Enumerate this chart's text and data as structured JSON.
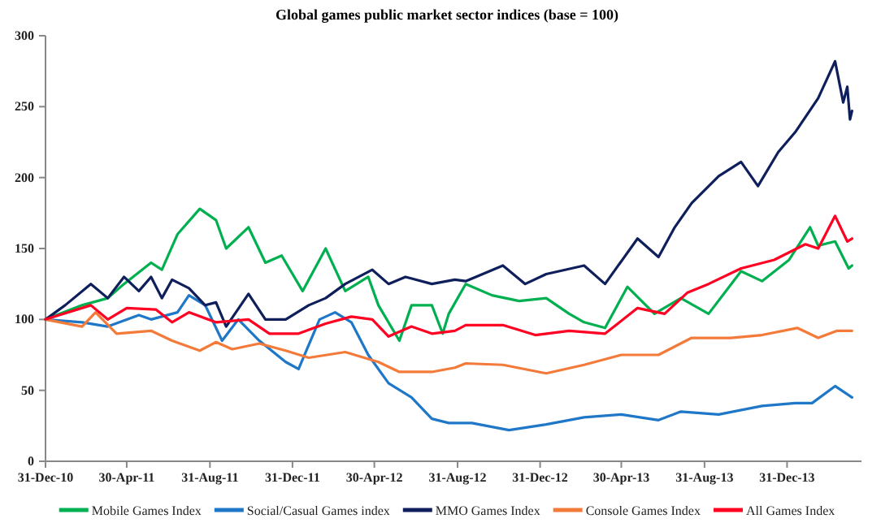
{
  "chart_data": {
    "type": "line",
    "title": "Global games public market sector indices (base = 100)",
    "xlim": [
      "2010-12-31",
      "2014-04-20"
    ],
    "xticks": [
      {
        "value": "2010-12-31",
        "label": "31-Dec-10"
      },
      {
        "value": "2011-04-30",
        "label": "30-Apr-11"
      },
      {
        "value": "2011-08-31",
        "label": "31-Aug-11"
      },
      {
        "value": "2011-12-31",
        "label": "31-Dec-11"
      },
      {
        "value": "2012-04-30",
        "label": "30-Apr-12"
      },
      {
        "value": "2012-08-31",
        "label": "31-Aug-12"
      },
      {
        "value": "2012-12-31",
        "label": "31-Dec-12"
      },
      {
        "value": "2013-04-30",
        "label": "30-Apr-13"
      },
      {
        "value": "2013-08-31",
        "label": "31-Aug-13"
      },
      {
        "value": "2013-12-31",
        "label": "31-Dec-13"
      }
    ],
    "ylim": [
      0,
      300
    ],
    "yticks": [
      0,
      50,
      100,
      150,
      200,
      250,
      300
    ],
    "grid": false,
    "legend": "bottom",
    "series": [
      {
        "name": "Mobile Games Index",
        "color": "#00b050",
        "x": [
          "2010-12-31",
          "2011-02-23",
          "2011-04-02",
          "2011-04-26",
          "2011-06-05",
          "2011-06-21",
          "2011-07-14",
          "2011-08-16",
          "2011-09-09",
          "2011-09-24",
          "2011-10-27",
          "2011-11-21",
          "2011-12-15",
          "2012-01-15",
          "2012-02-18",
          "2012-03-18",
          "2012-04-21",
          "2012-05-06",
          "2012-06-06",
          "2012-06-24",
          "2012-07-24",
          "2012-08-09",
          "2012-08-18",
          "2012-09-12",
          "2012-10-21",
          "2012-11-30",
          "2013-01-09",
          "2013-02-12",
          "2013-03-06",
          "2013-04-06",
          "2013-05-09",
          "2013-06-18",
          "2013-07-27",
          "2013-09-06",
          "2013-10-24",
          "2013-11-24",
          "2014-01-03",
          "2014-02-03",
          "2014-02-15",
          "2014-03-12",
          "2014-04-01",
          "2014-04-06"
        ],
        "values": [
          100,
          110,
          115,
          125,
          140,
          135,
          160,
          178,
          170,
          150,
          165,
          140,
          145,
          120,
          150,
          120,
          130,
          110,
          85,
          110,
          110,
          90,
          104,
          125,
          117,
          113,
          115,
          104,
          98,
          94,
          123,
          104,
          115,
          104,
          134,
          127,
          142,
          165,
          152,
          155,
          136,
          138
        ]
      },
      {
        "name": "Social/Casual Games index",
        "color": "#1f77c8",
        "x": [
          "2010-12-31",
          "2011-02-23",
          "2011-04-02",
          "2011-05-18",
          "2011-06-05",
          "2011-07-14",
          "2011-07-31",
          "2011-08-24",
          "2011-09-18",
          "2011-10-12",
          "2011-11-12",
          "2011-12-21",
          "2012-01-09",
          "2012-02-09",
          "2012-03-03",
          "2012-03-27",
          "2012-04-21",
          "2012-05-21",
          "2012-06-24",
          "2012-07-24",
          "2012-08-18",
          "2012-09-21",
          "2012-11-15",
          "2013-01-09",
          "2013-03-06",
          "2013-04-30",
          "2013-06-24",
          "2013-07-27",
          "2013-09-21",
          "2013-11-24",
          "2014-01-12",
          "2014-02-06",
          "2014-03-12",
          "2014-04-06"
        ],
        "values": [
          100,
          98,
          95,
          103,
          100,
          105,
          117,
          110,
          85,
          100,
          85,
          70,
          65,
          100,
          105,
          98,
          75,
          55,
          45,
          30,
          27,
          27,
          22,
          26,
          31,
          33,
          29,
          35,
          33,
          39,
          41,
          41,
          53,
          45
        ]
      },
      {
        "name": "MMO Games Index",
        "color": "#0f1f5c",
        "x": [
          "2010-12-31",
          "2011-01-29",
          "2011-03-08",
          "2011-04-02",
          "2011-04-26",
          "2011-05-18",
          "2011-06-05",
          "2011-06-21",
          "2011-07-06",
          "2011-07-31",
          "2011-08-24",
          "2011-09-09",
          "2011-09-24",
          "2011-10-27",
          "2011-11-21",
          "2011-12-21",
          "2012-01-24",
          "2012-02-18",
          "2012-03-18",
          "2012-04-27",
          "2012-05-21",
          "2012-06-15",
          "2012-07-24",
          "2012-08-27",
          "2012-09-12",
          "2012-11-06",
          "2012-12-09",
          "2013-01-09",
          "2013-03-06",
          "2013-04-06",
          "2013-05-24",
          "2013-06-24",
          "2013-07-18",
          "2013-08-12",
          "2013-09-21",
          "2013-10-24",
          "2013-11-18",
          "2013-12-18",
          "2014-01-12",
          "2014-02-15",
          "2014-03-12",
          "2014-03-24",
          "2014-03-30",
          "2014-04-03",
          "2014-04-06"
        ],
        "values": [
          100,
          110,
          125,
          115,
          130,
          120,
          130,
          115,
          128,
          122,
          110,
          112,
          95,
          118,
          100,
          100,
          110,
          115,
          125,
          135,
          125,
          130,
          125,
          128,
          127,
          138,
          125,
          132,
          138,
          125,
          157,
          144,
          165,
          182,
          201,
          211,
          194,
          218,
          232,
          256,
          282,
          253,
          264,
          241,
          247
        ]
      },
      {
        "name": "Console Games Index",
        "color": "#f47a3a",
        "x": [
          "2010-12-31",
          "2011-02-23",
          "2011-03-15",
          "2011-04-15",
          "2011-06-05",
          "2011-07-06",
          "2011-08-16",
          "2011-09-09",
          "2011-10-03",
          "2011-11-12",
          "2011-12-21",
          "2012-01-24",
          "2012-03-18",
          "2012-05-06",
          "2012-06-06",
          "2012-07-24",
          "2012-08-27",
          "2012-09-12",
          "2012-11-06",
          "2013-01-09",
          "2013-03-06",
          "2013-04-30",
          "2013-06-24",
          "2013-08-12",
          "2013-10-09",
          "2013-11-24",
          "2014-01-15",
          "2014-02-15",
          "2014-03-15",
          "2014-04-06"
        ],
        "values": [
          100,
          95,
          105,
          90,
          92,
          85,
          78,
          84,
          79,
          83,
          78,
          73,
          77,
          70,
          63,
          63,
          66,
          69,
          68,
          62,
          68,
          75,
          75,
          87,
          87,
          89,
          94,
          87,
          92,
          92
        ]
      },
      {
        "name": "All Games Index",
        "color": "#ff0022",
        "x": [
          "2010-12-31",
          "2011-03-08",
          "2011-04-02",
          "2011-04-30",
          "2011-06-12",
          "2011-07-06",
          "2011-07-31",
          "2011-09-09",
          "2011-10-27",
          "2011-11-27",
          "2012-01-09",
          "2012-02-18",
          "2012-03-27",
          "2012-04-27",
          "2012-05-21",
          "2012-06-24",
          "2012-07-24",
          "2012-08-27",
          "2012-09-12",
          "2012-11-06",
          "2012-12-24",
          "2013-02-12",
          "2013-04-06",
          "2013-05-24",
          "2013-07-03",
          "2013-08-06",
          "2013-09-06",
          "2013-10-24",
          "2013-12-12",
          "2014-01-27",
          "2014-02-15",
          "2014-03-12",
          "2014-03-30",
          "2014-04-06"
        ],
        "values": [
          100,
          110,
          100,
          108,
          107,
          98,
          105,
          98,
          100,
          90,
          90,
          97,
          102,
          100,
          88,
          95,
          90,
          92,
          96,
          96,
          89,
          92,
          90,
          108,
          104,
          119,
          125,
          136,
          142,
          153,
          150,
          173,
          155,
          157
        ]
      }
    ]
  }
}
